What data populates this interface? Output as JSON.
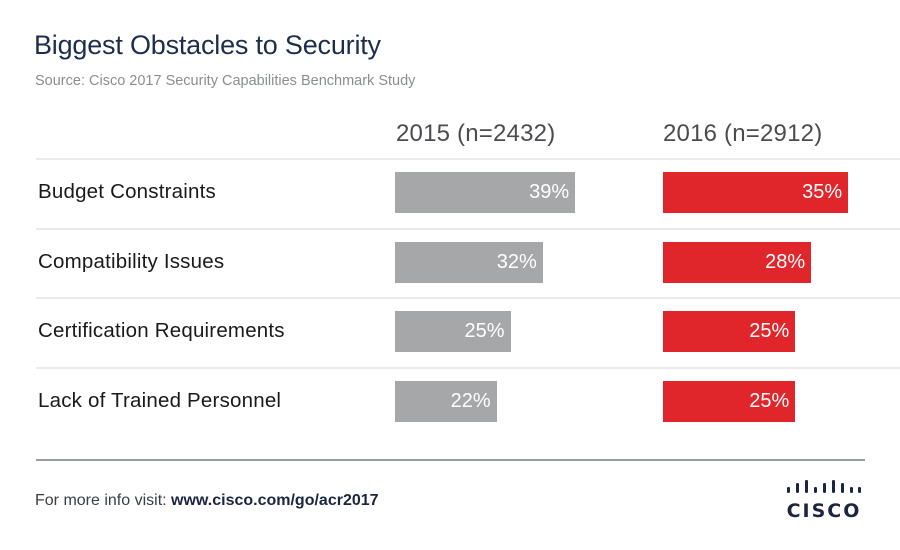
{
  "header": {
    "title": "Biggest Obstacles to Security",
    "subtitle": "Source: Cisco 2017 Security Capabilities Benchmark Study"
  },
  "footer": {
    "prefix": "For more info visit: ",
    "url": "www.cisco.com/go/acr2017",
    "logo_text": "CISCO",
    "logo_icon": "cisco-bridge-icon"
  },
  "colors": {
    "series_2015": "#a6a7a9",
    "series_2016": "#e1262b",
    "title": "#1f2d4d"
  },
  "chart_data": {
    "type": "bar",
    "orientation": "horizontal",
    "title": "Biggest Obstacles to Security",
    "subtitle": "Source: Cisco 2017 Security Capabilities Benchmark Study",
    "categories": [
      "Budget Constraints",
      "Compatibility Issues",
      "Certification Requirements",
      "Lack of Trained Personnel"
    ],
    "series": [
      {
        "name": "2015 (n=2432)",
        "values": [
          39,
          32,
          25,
          22
        ],
        "labels": [
          "39%",
          "32%",
          "25%",
          "22%"
        ]
      },
      {
        "name": "2016 (n=2912)",
        "values": [
          35,
          28,
          25,
          25
        ],
        "labels": [
          "35%",
          "28%",
          "25%",
          "25%"
        ]
      }
    ],
    "unit": "%",
    "xlabel": "",
    "ylabel": "",
    "grid": false,
    "legend": "column-headers-top"
  }
}
